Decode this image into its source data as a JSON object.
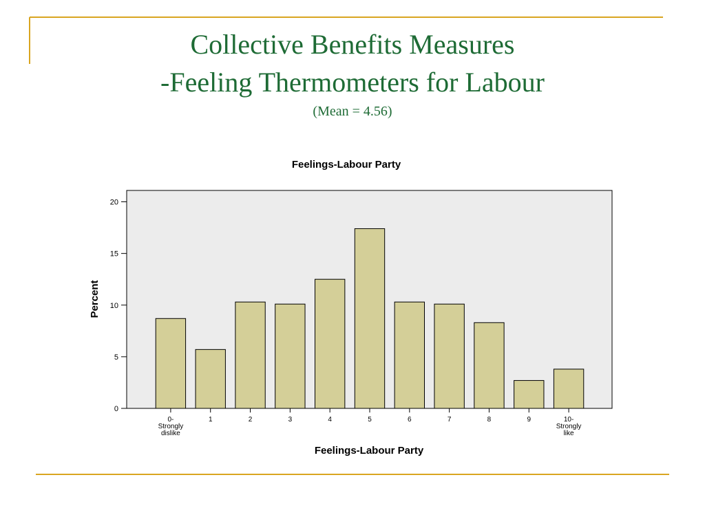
{
  "slide": {
    "title": [
      "Collective Benefits Measures",
      "-Feeling Thermometers for Labour"
    ],
    "subtitle": "(Mean = 4.56)"
  },
  "chart_data": {
    "type": "bar",
    "title": "Feelings-Labour Party",
    "x_label": "Feelings-Labour Party",
    "y_label": "Percent",
    "categories": [
      "0-\nStrongly\ndislike",
      "1",
      "2",
      "3",
      "4",
      "5",
      "6",
      "7",
      "8",
      "9",
      "10-\nStrongly\nlike"
    ],
    "values": [
      8.7,
      5.7,
      10.3,
      10.1,
      12.5,
      17.4,
      10.3,
      10.1,
      8.3,
      2.7,
      3.8
    ],
    "color": "#d4cf98",
    "ylim": [
      0,
      21.1
    ],
    "yticks": [
      0,
      5,
      10,
      15,
      20
    ],
    "grid": false
  }
}
